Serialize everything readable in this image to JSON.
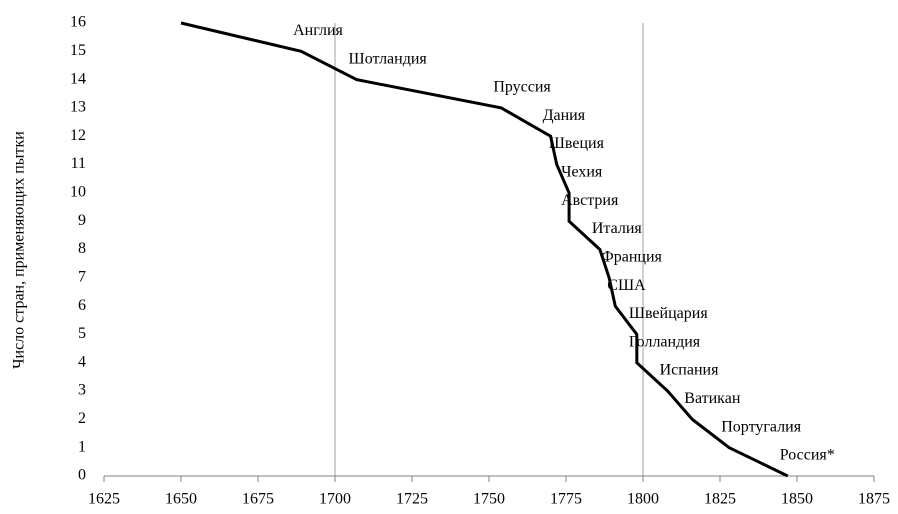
{
  "chart_data": {
    "type": "line",
    "ylabel": "Число стран, применяющих пытки",
    "series": [
      {
        "name": "Число стран",
        "color": "#000000",
        "x": [
          1650,
          1689,
          1707,
          1754,
          1770,
          1772,
          1776,
          1776,
          1786,
          1789,
          1791,
          1798,
          1798,
          1808,
          1816,
          1828,
          1847
        ],
        "values": [
          16,
          15,
          14,
          13,
          12,
          11,
          10,
          9,
          8,
          7,
          6,
          5,
          4,
          3,
          2,
          1,
          0
        ],
        "point_labels": [
          null,
          "Англия",
          "Шотландия",
          "Пруссия",
          "Дания",
          "Швеция",
          "Чехия",
          "Австрия",
          "Италия",
          "Франция",
          "США",
          "Швейцария",
          "Голландия",
          "Испания",
          "Ватикан",
          "Португалия",
          "Россия*"
        ]
      }
    ],
    "xlim": [
      1625,
      1875
    ],
    "xticks": [
      1625,
      1650,
      1675,
      1700,
      1725,
      1750,
      1775,
      1800,
      1825,
      1850,
      1875
    ],
    "ylim": [
      0,
      16
    ],
    "yticks": [
      0,
      1,
      2,
      3,
      4,
      5,
      6,
      7,
      8,
      9,
      10,
      11,
      12,
      13,
      14,
      15,
      16
    ],
    "x_gridlines": [
      1700,
      1800
    ]
  }
}
